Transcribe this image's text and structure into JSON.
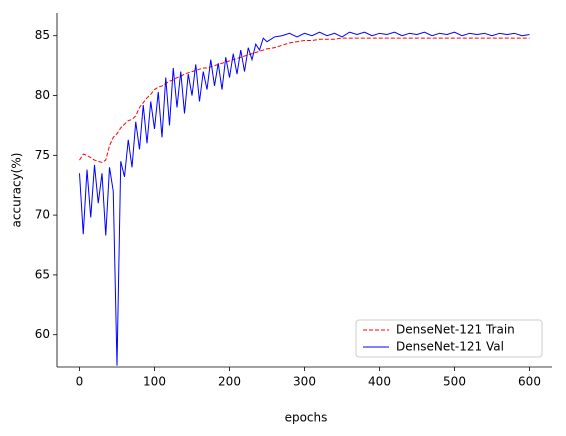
{
  "chart_data": {
    "type": "line",
    "xlabel": "epochs",
    "ylabel": "accuracy(%)",
    "x": [
      0,
      5,
      10,
      15,
      20,
      25,
      30,
      35,
      40,
      45,
      50,
      55,
      60,
      65,
      70,
      75,
      80,
      85,
      90,
      95,
      100,
      105,
      110,
      115,
      120,
      125,
      130,
      135,
      140,
      145,
      150,
      155,
      160,
      165,
      170,
      175,
      180,
      185,
      190,
      195,
      200,
      205,
      210,
      215,
      220,
      225,
      230,
      235,
      240,
      245,
      250,
      260,
      270,
      280,
      290,
      300,
      310,
      320,
      330,
      340,
      350,
      360,
      370,
      380,
      390,
      400,
      410,
      420,
      430,
      440,
      450,
      460,
      470,
      480,
      490,
      500,
      510,
      520,
      530,
      540,
      550,
      560,
      570,
      580,
      590,
      600
    ],
    "series": [
      {
        "name": "DenseNet-121 Train",
        "color": "#ff0000",
        "dash": true,
        "values": [
          74.6,
          75.1,
          75.0,
          74.8,
          74.6,
          74.5,
          74.4,
          74.6,
          75.8,
          76.5,
          76.8,
          77.3,
          77.6,
          77.9,
          78.0,
          78.3,
          79.0,
          79.4,
          79.8,
          80.1,
          80.5,
          80.7,
          80.8,
          81.0,
          81.2,
          81.3,
          81.5,
          81.6,
          81.8,
          81.9,
          82.0,
          82.1,
          82.2,
          82.3,
          82.3,
          82.4,
          82.5,
          82.6,
          82.7,
          82.8,
          82.9,
          83.0,
          83.1,
          83.2,
          83.3,
          83.4,
          83.5,
          83.6,
          83.7,
          83.8,
          83.9,
          84.0,
          84.2,
          84.4,
          84.5,
          84.6,
          84.6,
          84.7,
          84.7,
          84.7,
          84.8,
          84.8,
          84.8,
          84.8,
          84.8,
          84.8,
          84.8,
          84.8,
          84.8,
          84.8,
          84.8,
          84.8,
          84.8,
          84.8,
          84.8,
          84.8,
          84.8,
          84.8,
          84.8,
          84.8,
          84.8,
          84.8,
          84.8,
          84.8,
          84.8,
          84.8
        ]
      },
      {
        "name": "DenseNet-121 Val",
        "color": "#0000ff",
        "dash": false,
        "values": [
          73.5,
          68.4,
          73.8,
          69.8,
          74.2,
          71.0,
          73.5,
          68.3,
          74.0,
          72.0,
          57.4,
          74.5,
          73.2,
          76.3,
          74.0,
          77.8,
          75.5,
          79.2,
          76.0,
          79.5,
          77.2,
          80.3,
          76.5,
          81.5,
          77.5,
          82.3,
          79.0,
          82.0,
          78.5,
          81.8,
          80.0,
          82.6,
          79.5,
          82.0,
          80.5,
          83.0,
          80.8,
          82.7,
          80.5,
          83.2,
          81.5,
          83.5,
          81.8,
          83.8,
          82.0,
          84.0,
          83.0,
          84.3,
          83.8,
          84.8,
          84.5,
          84.9,
          85.0,
          85.2,
          84.9,
          85.2,
          85.0,
          85.3,
          85.0,
          85.2,
          84.9,
          85.3,
          85.1,
          85.3,
          85.0,
          85.2,
          85.1,
          85.3,
          85.0,
          85.2,
          85.1,
          85.3,
          85.0,
          85.2,
          85.1,
          85.3,
          85.0,
          85.2,
          85.1,
          85.2,
          85.0,
          85.2,
          85.1,
          85.2,
          85.0,
          85.1
        ]
      }
    ],
    "xlim": [
      -30,
      630
    ],
    "ylim": [
      57.3,
      86.9
    ],
    "xticks": [
      0,
      100,
      200,
      300,
      400,
      500,
      600
    ],
    "yticks": [
      60,
      65,
      70,
      75,
      80,
      85
    ],
    "grid": false,
    "legend": "lower right"
  }
}
